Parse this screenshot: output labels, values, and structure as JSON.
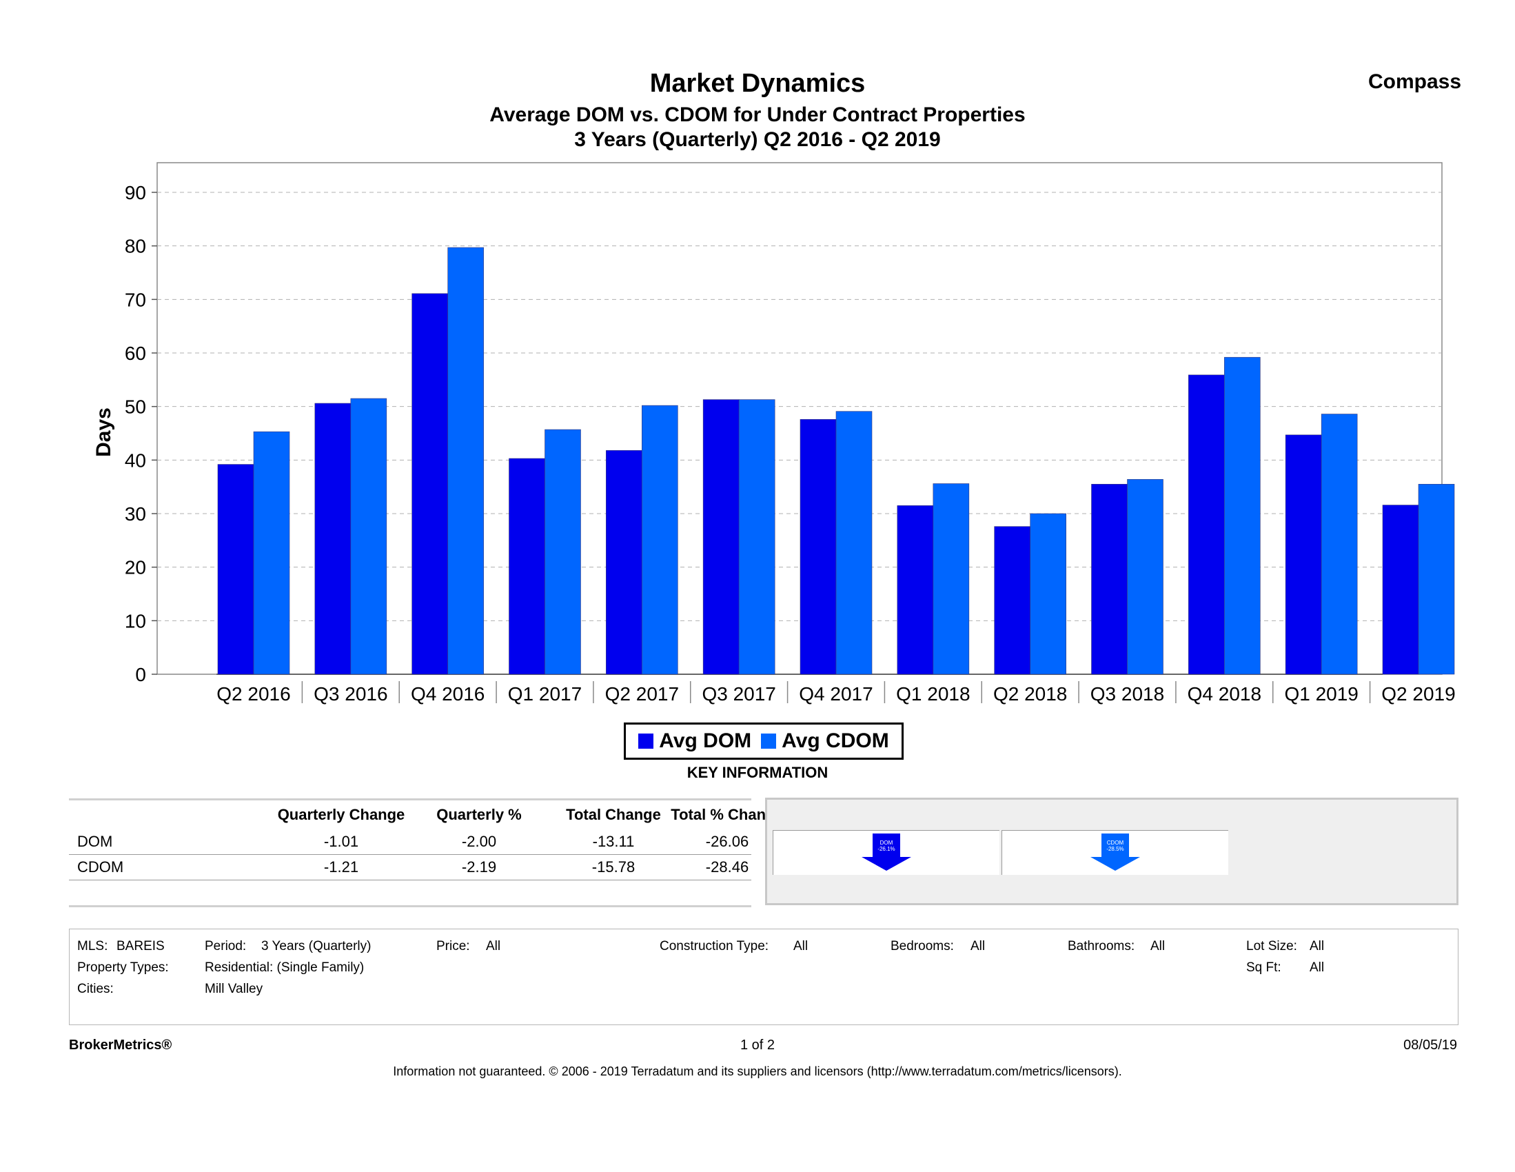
{
  "header": {
    "title": "Market Dynamics",
    "subtitle": "Average DOM vs. CDOM for Under Contract Properties",
    "period": "3 Years (Quarterly) Q2 2016 - Q2 2019",
    "brand": "Compass"
  },
  "colors": {
    "dom": "#0000ee",
    "cdom": "#0066ff"
  },
  "chart_data": {
    "type": "bar",
    "title": "Market Dynamics",
    "xlabel": "",
    "ylabel": "Days",
    "ylim": [
      0,
      90
    ],
    "yticks": [
      0,
      10,
      20,
      30,
      40,
      50,
      60,
      70,
      80,
      90
    ],
    "grid": true,
    "categories": [
      "Q2 2016",
      "Q3 2016",
      "Q4 2016",
      "Q1 2017",
      "Q2 2017",
      "Q3 2017",
      "Q4 2017",
      "Q1 2018",
      "Q2 2018",
      "Q3 2018",
      "Q4 2018",
      "Q1 2019",
      "Q2 2019"
    ],
    "series": [
      {
        "name": "Avg DOM",
        "values": [
          39.2,
          50.6,
          71.1,
          40.3,
          41.8,
          51.3,
          47.6,
          31.5,
          27.6,
          35.5,
          55.9,
          44.7,
          31.6
        ]
      },
      {
        "name": "Avg CDOM",
        "values": [
          45.3,
          51.5,
          79.7,
          45.7,
          50.2,
          51.3,
          49.1,
          35.6,
          30.0,
          36.4,
          59.2,
          48.6,
          35.5
        ]
      }
    ]
  },
  "legend": {
    "dom_label": "Avg DOM",
    "cdom_label": "Avg CDOM"
  },
  "key_info": {
    "heading": "KEY INFORMATION",
    "columns": [
      "Quarterly Change",
      "Quarterly %",
      "Total Change",
      "Total % Change"
    ],
    "rows": [
      {
        "label": "DOM",
        "values": [
          "-1.01",
          "-2.00",
          "-13.11",
          "-26.06"
        ]
      },
      {
        "label": "CDOM",
        "values": [
          "-1.21",
          "-2.19",
          "-15.78",
          "-28.46"
        ]
      }
    ],
    "indicators": [
      {
        "name": "DOM",
        "pct": "-26.1%"
      },
      {
        "name": "CDOM",
        "pct": "-28.5%"
      }
    ]
  },
  "filters": {
    "mls_label": "MLS:",
    "mls_value": "BAREIS",
    "period_label": "Period:",
    "period_value": "3 Years (Quarterly)",
    "price_label": "Price:",
    "price_value": "All",
    "construction_label": "Construction Type:",
    "construction_value": "All",
    "bedrooms_label": "Bedrooms:",
    "bedrooms_value": "All",
    "bathrooms_label": "Bathrooms:",
    "bathrooms_value": "All",
    "lot_label": "Lot Size:",
    "lot_value": "All",
    "property_label": "Property Types:",
    "property_value": "Residential: (Single Family)",
    "sqft_label": "Sq Ft:",
    "sqft_value": "All",
    "cities_label": "Cities:",
    "cities_value": "Mill Valley"
  },
  "footer": {
    "brand": "BrokerMetrics®",
    "page": "1 of 2",
    "date": "08/05/19",
    "disclaimer": "Information not guaranteed.  © 2006 - 2019 Terradatum and its suppliers and licensors (http://www.terradatum.com/metrics/licensors)."
  }
}
